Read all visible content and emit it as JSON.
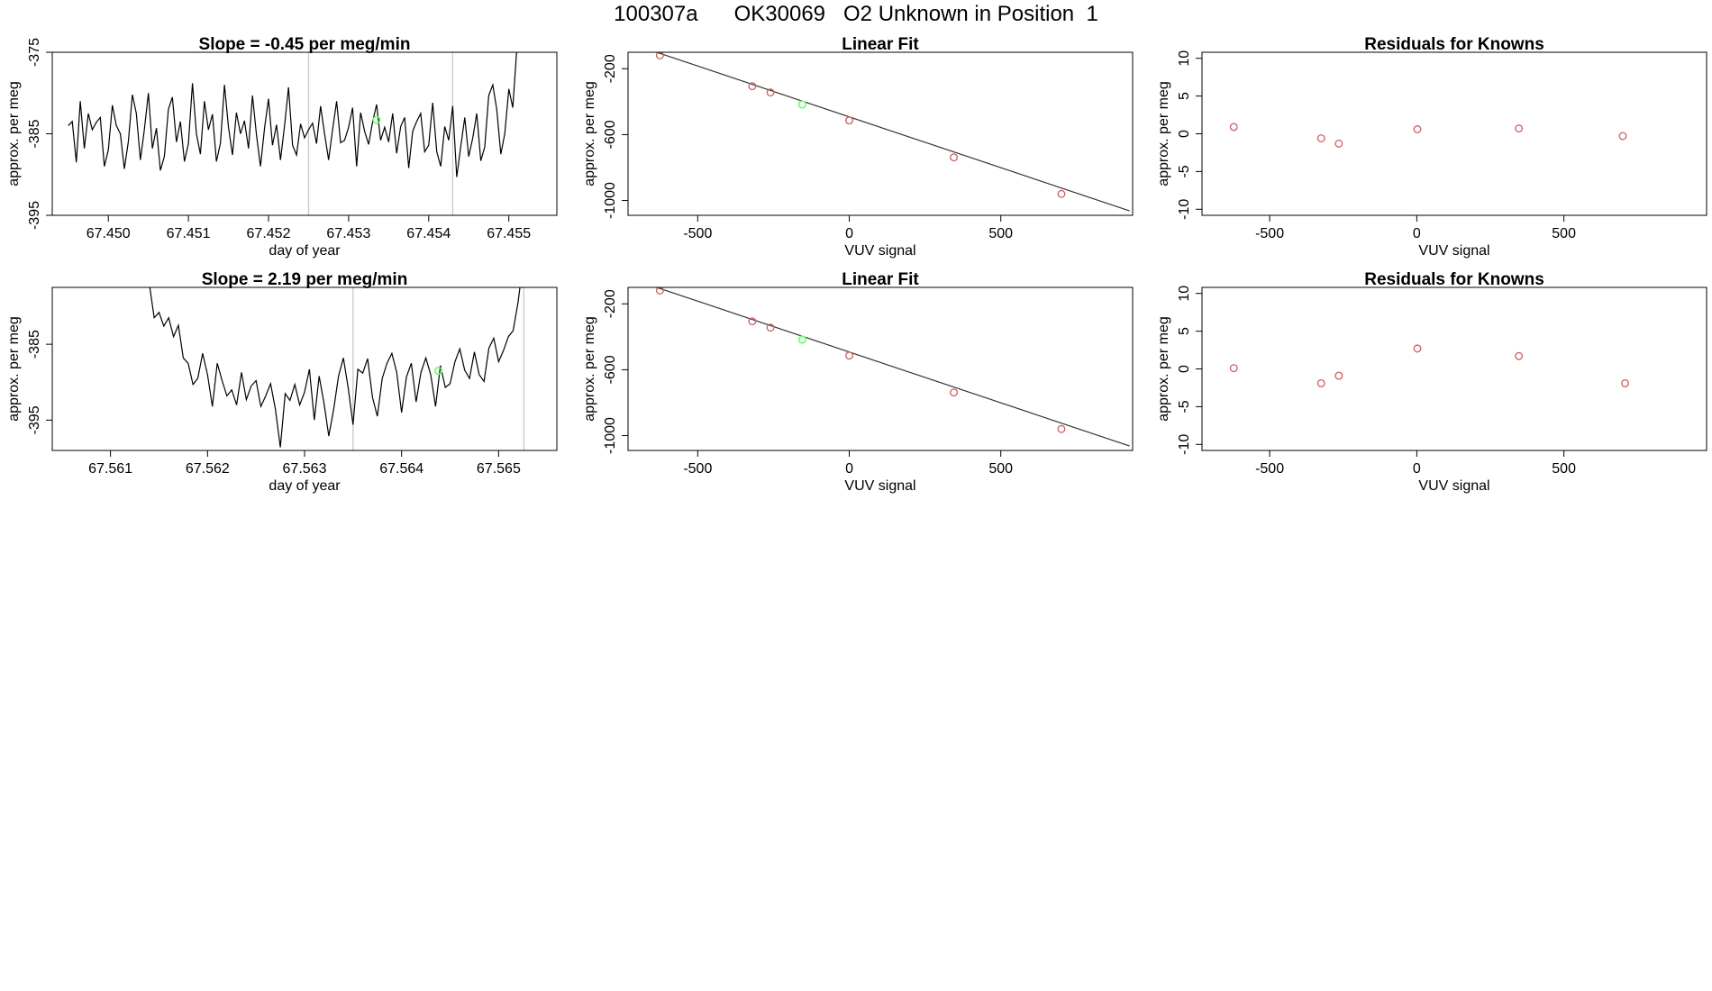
{
  "page_title": "100307a      OK30069   O2 Unknown in Position  1",
  "colors": {
    "line": "#000000",
    "known_points": "#cd5c5c",
    "unknown_point": "#66ff66",
    "marker_lines": "#c8c8c8",
    "fit_line": "#333333"
  },
  "chart_data": [
    {
      "type": "line",
      "title": "Slope =  -0.45  per meg/min",
      "xlabel": "day of year",
      "ylabel": "approx. per meg",
      "xlim": [
        67.4493,
        67.4556
      ],
      "ylim": [
        -395,
        -375
      ],
      "xticks": [
        "67.450",
        "67.451",
        "67.452",
        "67.453",
        "67.454",
        "67.455"
      ],
      "yticks": [
        "-375",
        "-385",
        "-395"
      ],
      "marker_lines_x": [
        67.4525,
        67.4543
      ],
      "unknown_point": {
        "x": 67.45335,
        "y": -383.3
      },
      "series": [
        {
          "x": [
            67.4495,
            67.44955,
            67.4496,
            67.44965,
            67.4497,
            67.44975,
            67.4498,
            67.44985,
            67.4499,
            67.44995,
            67.45,
            67.45005,
            67.4501,
            67.45015,
            67.4502,
            67.45025,
            67.4503,
            67.45035,
            67.4504,
            67.45045,
            67.4505,
            67.45055,
            67.4506,
            67.45065,
            67.4507,
            67.45075,
            67.4508,
            67.45085,
            67.4509,
            67.45095,
            67.451,
            67.45105,
            67.4511,
            67.45115,
            67.4512,
            67.45125,
            67.4513,
            67.45135,
            67.4514,
            67.45145,
            67.4515,
            67.45155,
            67.4516,
            67.45165,
            67.4517,
            67.45175,
            67.4518,
            67.45185,
            67.4519,
            67.45195,
            67.452,
            67.45205,
            67.4521,
            67.45215,
            67.4522,
            67.45225,
            67.4523,
            67.45235,
            67.4524,
            67.45245,
            67.4525,
            67.45255,
            67.4526,
            67.45265,
            67.4527,
            67.45275,
            67.4528,
            67.45285,
            67.4529,
            67.45295,
            67.453,
            67.45305,
            67.4531,
            67.45315,
            67.4532,
            67.45325,
            67.4533,
            67.45335,
            67.4534,
            67.45345,
            67.4535,
            67.45355,
            67.4536,
            67.45365,
            67.4537,
            67.45375,
            67.4538,
            67.45385,
            67.4539,
            67.45395,
            67.454,
            67.45405,
            67.4541,
            67.45415,
            67.4542,
            67.45425,
            67.4543,
            67.45435,
            67.4544,
            67.45445,
            67.4545,
            67.45455,
            67.4546,
            67.45465,
            67.4547,
            67.45475,
            67.4548,
            67.45485,
            67.4549,
            67.45495,
            67.455,
            67.45505,
            67.4551,
            67.45515
          ],
          "values": [
            -384,
            -383.5,
            -388.5,
            -381,
            -386.8,
            -382.5,
            -384.5,
            -383.6,
            -383,
            -389,
            -387,
            -381.5,
            -384,
            -385,
            -389.3,
            -386,
            -380.2,
            -382.5,
            -388.2,
            -384.5,
            -380,
            -386.8,
            -384.3,
            -389.5,
            -387.8,
            -382,
            -380.5,
            -386,
            -383.5,
            -388.4,
            -386.2,
            -378.8,
            -385,
            -387.5,
            -381,
            -384.5,
            -382.6,
            -388.4,
            -386.1,
            -379,
            -384.2,
            -387.6,
            -382.4,
            -385,
            -383.4,
            -386.8,
            -380.3,
            -385.2,
            -389,
            -384.3,
            -380.7,
            -386.4,
            -383.9,
            -388.2,
            -384,
            -379.3,
            -386.4,
            -387.6,
            -383.8,
            -385.5,
            -384.5,
            -383.7,
            -386.2,
            -381.6,
            -385,
            -388.2,
            -384.5,
            -381,
            -386.1,
            -385.8,
            -384.2,
            -381.8,
            -389,
            -382.4,
            -384.7,
            -386.3,
            -383.5,
            -381.4,
            -385.8,
            -384.2,
            -386,
            -382.5,
            -387.4,
            -384.1,
            -383,
            -389.2,
            -384.7,
            -383.5,
            -382.5,
            -387.2,
            -386.4,
            -381.2,
            -387.2,
            -389,
            -384.1,
            -385.8,
            -381.6,
            -390.3,
            -386.6,
            -383,
            -387.8,
            -385.5,
            -382.5,
            -388.3,
            -386.6,
            -380.3,
            -379,
            -382,
            -387.5,
            -385,
            -379.5,
            -381.8,
            -374.5,
            -371
          ]
        }
      ]
    },
    {
      "type": "scatter",
      "title": "Linear Fit",
      "xlabel": "VUV signal",
      "ylabel": "approx. per meg",
      "xlim": [
        -730,
        935
      ],
      "ylim": [
        -1090,
        -100
      ],
      "xticks": [
        "-500",
        "0",
        "500"
      ],
      "yticks": [
        "-200",
        "-600",
        "-1000"
      ],
      "fit_line": {
        "x": [
          -665,
          925
        ],
        "y": [
          -82,
          -1063
        ]
      },
      "known_points": {
        "x": [
          -625,
          -320,
          -260,
          0,
          345,
          700
        ],
        "y": [
          -119,
          -306,
          -344,
          -514,
          -738,
          -960
        ]
      },
      "unknown_point": {
        "x": -155,
        "y": -417
      }
    },
    {
      "type": "scatter",
      "title": "Residuals for Knowns",
      "xlabel": "VUV signal",
      "ylabel": "approx. per meg",
      "xlim": [
        -730,
        985
      ],
      "ylim": [
        -10.8,
        10.8
      ],
      "xticks": [
        "-500",
        "0",
        "500"
      ],
      "yticks": [
        "10",
        "5",
        "0",
        "-5",
        "-10"
      ],
      "known_points": {
        "x": [
          -622,
          -325,
          -265,
          2,
          347,
          700
        ],
        "y": [
          0.9,
          -0.6,
          -1.3,
          0.6,
          0.7,
          -0.3
        ]
      }
    },
    {
      "type": "line",
      "title": "Slope =  2.19  per meg/min",
      "xlabel": "day of year",
      "ylabel": "approx. per meg",
      "xlim": [
        67.5604,
        67.5656
      ],
      "ylim": [
        -399,
        -377.5
      ],
      "xticks": [
        "67.561",
        "67.562",
        "67.563",
        "67.564",
        "67.565"
      ],
      "yticks": [
        "-385",
        "-395"
      ],
      "marker_lines_x": [
        67.5635,
        67.56526
      ],
      "unknown_point": {
        "x": 67.56438,
        "y": -388.5
      },
      "series": [
        {
          "x": [
            67.5614,
            67.56145,
            67.5615,
            67.56155,
            67.5616,
            67.56165,
            67.5617,
            67.56175,
            67.5618,
            67.56185,
            67.5619,
            67.56195,
            67.562,
            67.56205,
            67.5621,
            67.56215,
            67.5622,
            67.56225,
            67.5623,
            67.56235,
            67.5624,
            67.56245,
            67.5625,
            67.56255,
            67.5626,
            67.56265,
            67.5627,
            67.56275,
            67.5628,
            67.56285,
            67.5629,
            67.56295,
            67.563,
            67.56305,
            67.5631,
            67.56315,
            67.5632,
            67.56325,
            67.5633,
            67.56335,
            67.5634,
            67.56345,
            67.5635,
            67.56355,
            67.5636,
            67.56365,
            67.5637,
            67.56375,
            67.5638,
            67.56385,
            67.5639,
            67.56395,
            67.564,
            67.56405,
            67.5641,
            67.56415,
            67.5642,
            67.56425,
            67.5643,
            67.56435,
            67.5644,
            67.56445,
            67.5645,
            67.56455,
            67.5646,
            67.56465,
            67.5647,
            67.56475,
            67.5648,
            67.56485,
            67.5649,
            67.56495,
            67.565,
            67.56505,
            67.5651,
            67.56515,
            67.5652,
            67.56525
          ],
          "values": [
            -377,
            -381.5,
            -380.8,
            -382.6,
            -381.5,
            -384,
            -382.5,
            -386.8,
            -387.5,
            -390.3,
            -389.5,
            -386.2,
            -389,
            -393.2,
            -387.5,
            -389.8,
            -391.8,
            -391,
            -393,
            -388.7,
            -392.3,
            -390.5,
            -389.8,
            -393.2,
            -391.8,
            -390.2,
            -393.6,
            -398.6,
            -391.5,
            -392.4,
            -390.3,
            -393,
            -391.3,
            -388.3,
            -395,
            -389.2,
            -392.7,
            -397.1,
            -393.6,
            -389.2,
            -386.8,
            -390.8,
            -395.6,
            -388.3,
            -388.8,
            -386.9,
            -392,
            -394.5,
            -389.5,
            -387.5,
            -386.2,
            -388.7,
            -394,
            -389.3,
            -387.5,
            -392.6,
            -388.7,
            -386.8,
            -389,
            -393.2,
            -387.8,
            -390.7,
            -390.2,
            -387.3,
            -385.6,
            -388.4,
            -389.5,
            -386,
            -389,
            -389.9,
            -385.5,
            -384.2,
            -387.3,
            -385.8,
            -384,
            -383.2,
            -379.5,
            -374.5
          ]
        }
      ]
    },
    {
      "type": "scatter",
      "title": "Linear Fit",
      "xlabel": "VUV signal",
      "ylabel": "approx. per meg",
      "xlim": [
        -730,
        935
      ],
      "ylim": [
        -1090,
        -100
      ],
      "xticks": [
        "-500",
        "0",
        "500"
      ],
      "yticks": [
        "-200",
        "-600",
        "-1000"
      ],
      "fit_line": {
        "x": [
          -665,
          925
        ],
        "y": [
          -82,
          -1063
        ]
      },
      "known_points": {
        "x": [
          -625,
          -320,
          -260,
          0,
          345,
          700
        ],
        "y": [
          -119,
          -306,
          -344,
          -514,
          -738,
          -960
        ]
      },
      "unknown_point": {
        "x": -155,
        "y": -417
      }
    },
    {
      "type": "scatter",
      "title": "Residuals for Knowns",
      "xlabel": "VUV signal",
      "ylabel": "approx. per meg",
      "xlim": [
        -730,
        985
      ],
      "ylim": [
        -10.8,
        10.8
      ],
      "xticks": [
        "-500",
        "0",
        "500"
      ],
      "yticks": [
        "10",
        "5",
        "0",
        "-5",
        "-10"
      ],
      "known_points": {
        "x": [
          -622,
          -325,
          -265,
          2,
          347,
          708
        ],
        "y": [
          0.1,
          -1.9,
          -0.9,
          2.7,
          1.7,
          -1.9
        ]
      }
    }
  ]
}
